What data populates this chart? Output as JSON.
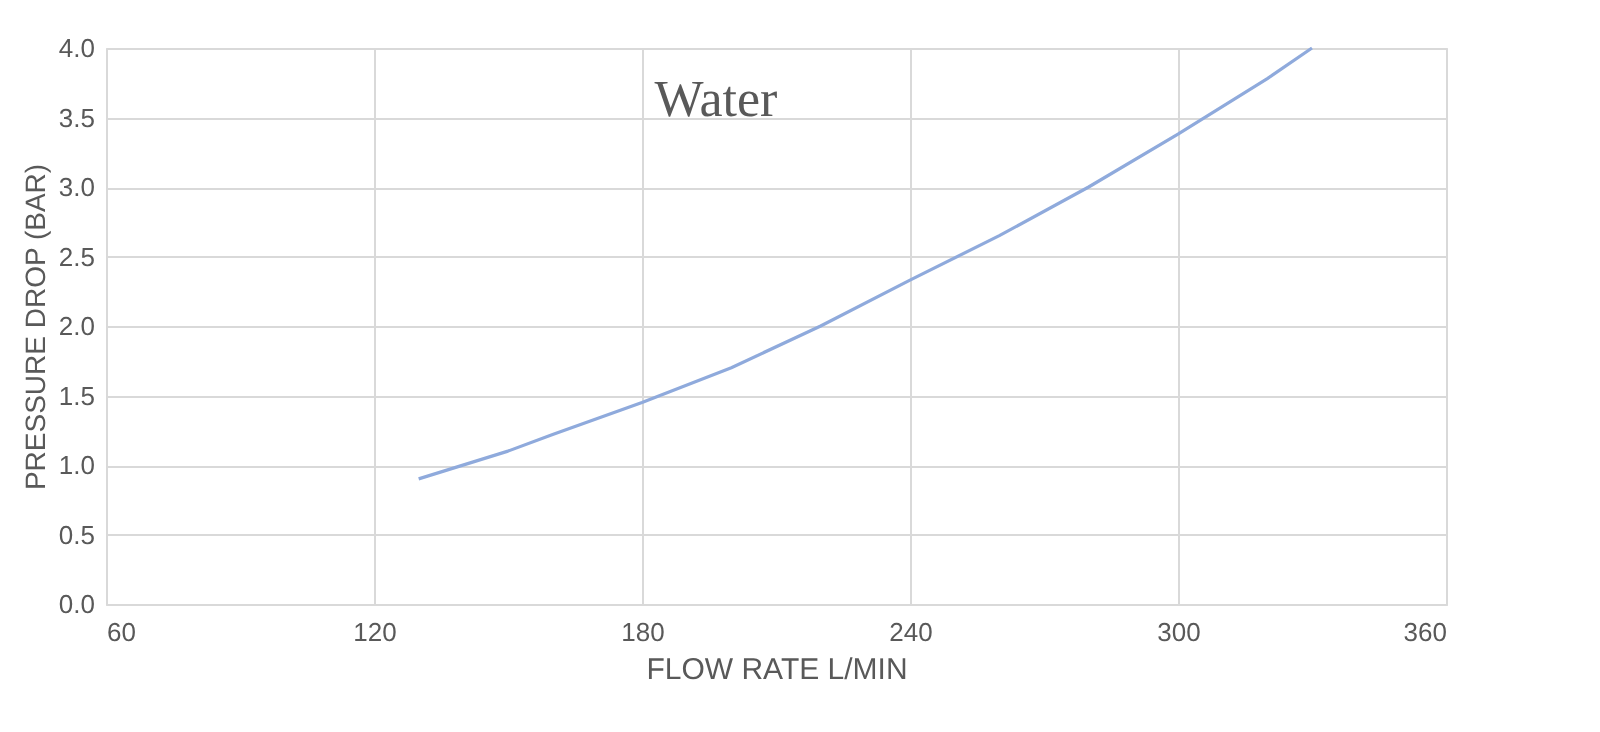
{
  "chart_data": {
    "type": "line",
    "title": "Water",
    "xlabel": "FLOW RATE L/MIN",
    "ylabel": "PRESSURE DROP (BAR)",
    "series": [
      {
        "color": "#8faadc",
        "x": [
          130,
          150,
          160,
          180,
          200,
          220,
          240,
          260,
          280,
          300,
          320,
          330
        ],
        "values": [
          0.9,
          1.1,
          1.22,
          1.45,
          1.7,
          2.0,
          2.33,
          2.65,
          3.0,
          3.38,
          3.78,
          4.0
        ]
      }
    ],
    "xlim": [
      60,
      360
    ],
    "xticks": [
      60,
      120,
      180,
      240,
      300,
      360
    ],
    "ylim": [
      0,
      4
    ],
    "yticks": [
      {
        "value": 0,
        "label": "0.0"
      },
      {
        "value": 0.5,
        "label": "0.5"
      },
      {
        "value": 1,
        "label": "1.0"
      },
      {
        "value": 1.5,
        "label": "1.5"
      },
      {
        "value": 2,
        "label": "2.0"
      },
      {
        "value": 2.5,
        "label": "2.5"
      },
      {
        "value": 3,
        "label": "3.0"
      },
      {
        "value": 3.5,
        "label": "3.5"
      },
      {
        "value": 4,
        "label": "4.0"
      }
    ],
    "grid": true,
    "marker": "none",
    "line_style": "solid"
  }
}
